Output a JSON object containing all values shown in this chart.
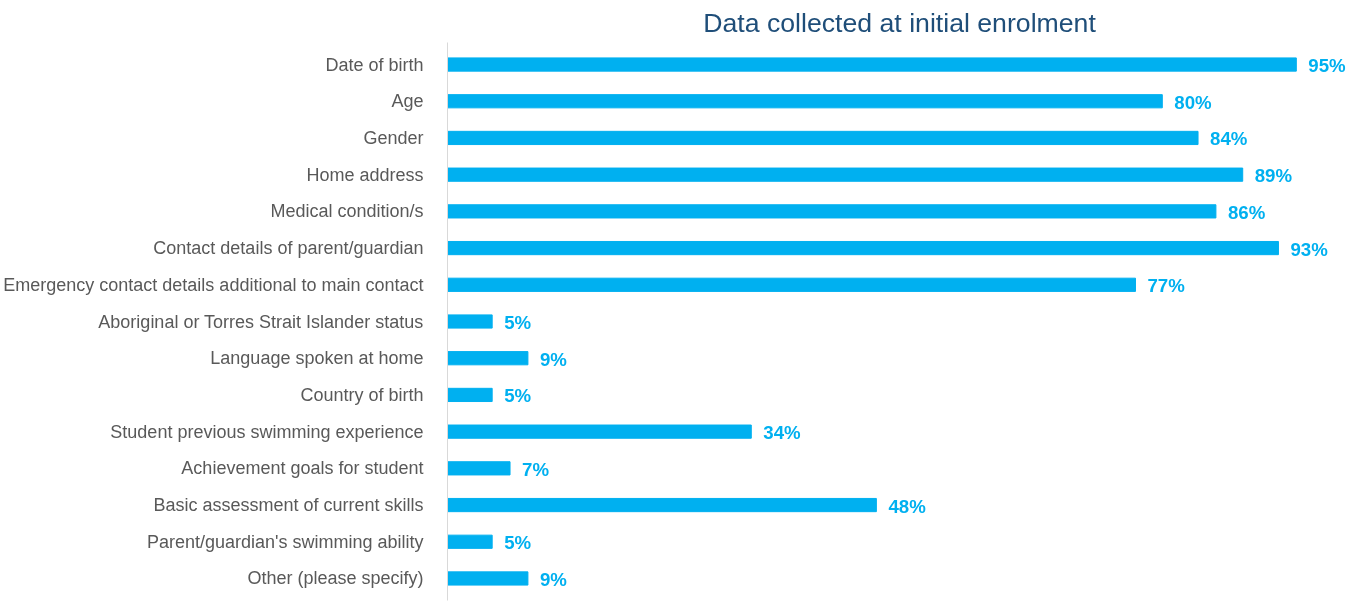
{
  "chart_data": {
    "type": "bar",
    "orientation": "horizontal",
    "title": "Data collected at initial enrolment",
    "categories": [
      "Date of birth",
      "Age",
      "Gender",
      "Home address",
      "Medical condition/s",
      "Contact details of parent/guardian",
      "Emergency contact details additional to main contact",
      "Aboriginal or Torres Strait Islander status",
      "Language spoken at home",
      "Country of birth",
      "Student previous swimming experience",
      "Achievement goals for student",
      "Basic assessment of current skills",
      "Parent/guardian's swimming ability",
      "Other (please specify)"
    ],
    "values": [
      95,
      80,
      84,
      89,
      86,
      93,
      77,
      5,
      9,
      5,
      34,
      7,
      48,
      5,
      9
    ],
    "value_labels": [
      "95%",
      "80%",
      "84%",
      "89%",
      "86%",
      "93%",
      "77%",
      "5%",
      "9%",
      "5%",
      "34%",
      "7%",
      "48%",
      "5%",
      "9%"
    ],
    "color": "#00b0f0",
    "tick_labels": "y",
    "grid": false
  }
}
